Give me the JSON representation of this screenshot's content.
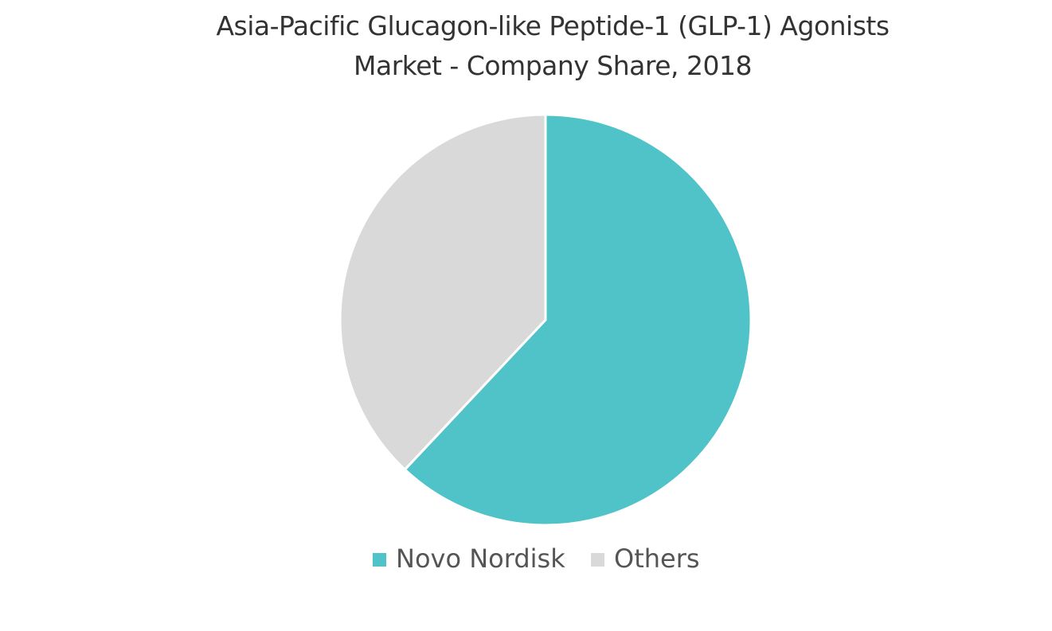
{
  "chart_data": {
    "type": "pie",
    "title": "Asia-Pacific Glucagon-like Peptide-1 (GLP-1) Agonists Market - Company Share, 2018",
    "categories": [
      "Novo Nordisk",
      "Others"
    ],
    "values": [
      62,
      38
    ],
    "colors": [
      "#50c3c8",
      "#d9d9d9"
    ],
    "legend": "bottom"
  }
}
